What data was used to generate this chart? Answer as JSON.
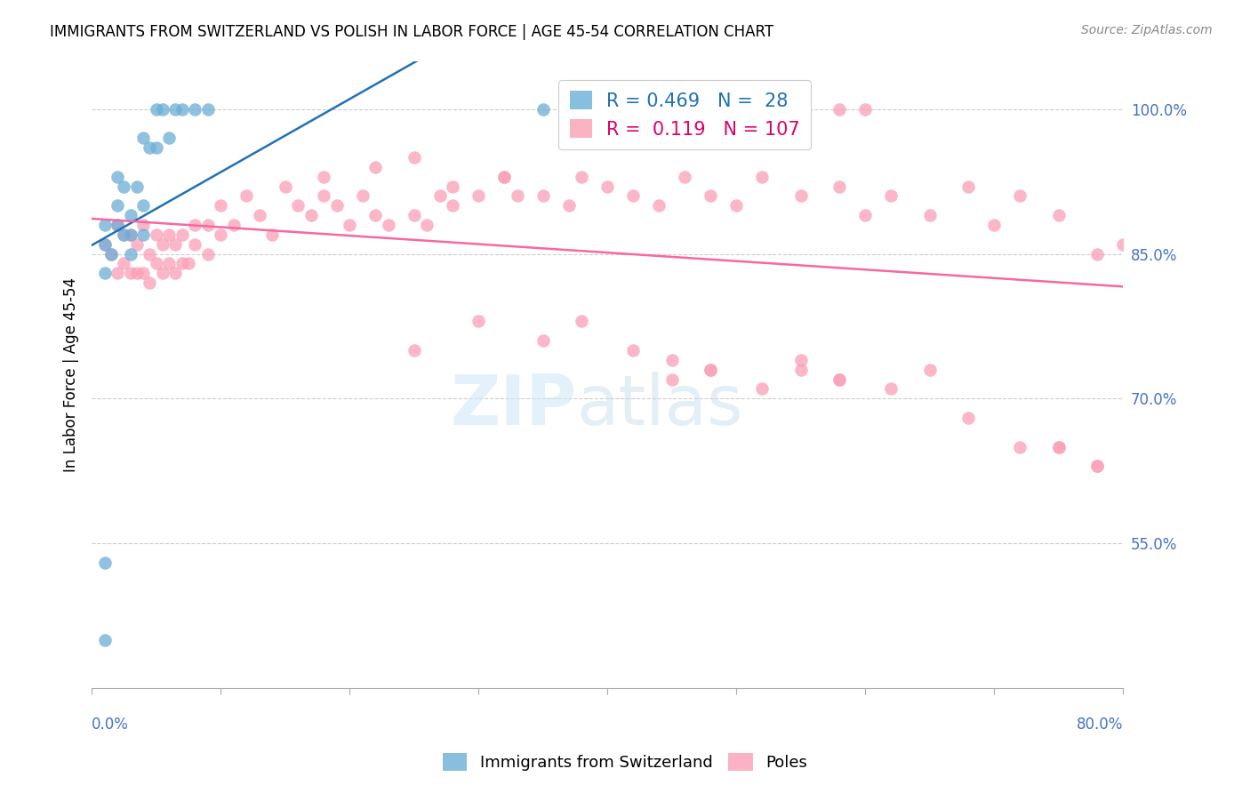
{
  "title": "IMMIGRANTS FROM SWITZERLAND VS POLISH IN LABOR FORCE | AGE 45-54 CORRELATION CHART",
  "source": "Source: ZipAtlas.com",
  "ylabel": "In Labor Force | Age 45-54",
  "ytick_values": [
    1.0,
    0.85,
    0.7,
    0.55
  ],
  "xmin": 0.0,
  "xmax": 0.8,
  "ymin": 0.4,
  "ymax": 1.05,
  "legend_swiss_R": "0.469",
  "legend_swiss_N": "28",
  "legend_poles_R": "0.119",
  "legend_poles_N": "107",
  "swiss_color": "#6baed6",
  "poles_color": "#fa9fb5",
  "swiss_line_color": "#2171b5",
  "poles_line_color": "#f768a1",
  "swiss_scatter_x": [
    0.01,
    0.01,
    0.01,
    0.015,
    0.02,
    0.02,
    0.02,
    0.025,
    0.025,
    0.03,
    0.03,
    0.03,
    0.035,
    0.04,
    0.04,
    0.04,
    0.045,
    0.05,
    0.05,
    0.055,
    0.06,
    0.065,
    0.07,
    0.08,
    0.09,
    0.35,
    0.01,
    0.01
  ],
  "swiss_scatter_y": [
    0.83,
    0.86,
    0.88,
    0.85,
    0.88,
    0.9,
    0.93,
    0.87,
    0.92,
    0.85,
    0.87,
    0.89,
    0.92,
    0.87,
    0.9,
    0.97,
    0.96,
    0.96,
    1.0,
    1.0,
    0.97,
    1.0,
    1.0,
    1.0,
    1.0,
    1.0,
    0.53,
    0.45
  ],
  "poles_scatter_x": [
    0.01,
    0.015,
    0.02,
    0.02,
    0.025,
    0.025,
    0.03,
    0.03,
    0.035,
    0.035,
    0.04,
    0.04,
    0.045,
    0.045,
    0.05,
    0.05,
    0.055,
    0.055,
    0.06,
    0.06,
    0.065,
    0.065,
    0.07,
    0.07,
    0.075,
    0.08,
    0.08,
    0.09,
    0.09,
    0.1,
    0.1,
    0.11,
    0.12,
    0.13,
    0.14,
    0.15,
    0.16,
    0.17,
    0.18,
    0.19,
    0.2,
    0.21,
    0.22,
    0.23,
    0.25,
    0.26,
    0.27,
    0.28,
    0.3,
    0.32,
    0.33,
    0.35,
    0.37,
    0.38,
    0.4,
    0.42,
    0.44,
    0.46,
    0.48,
    0.5,
    0.52,
    0.55,
    0.58,
    0.6,
    0.62,
    0.65,
    0.68,
    0.7,
    0.72,
    0.75,
    0.5,
    0.52,
    0.55,
    0.58,
    0.6,
    0.38,
    0.42,
    0.45,
    0.18,
    0.22,
    0.25,
    0.28,
    0.32,
    0.45,
    0.48,
    0.75,
    0.78,
    0.55,
    0.58,
    0.62,
    0.65,
    0.68,
    0.72,
    0.75,
    0.78,
    0.8,
    0.78,
    0.25,
    0.3,
    0.35,
    0.38,
    0.42,
    0.45,
    0.48,
    0.52,
    0.55,
    0.58
  ],
  "poles_scatter_y": [
    0.86,
    0.85,
    0.83,
    0.88,
    0.84,
    0.87,
    0.83,
    0.87,
    0.83,
    0.86,
    0.83,
    0.88,
    0.82,
    0.85,
    0.84,
    0.87,
    0.83,
    0.86,
    0.84,
    0.87,
    0.83,
    0.86,
    0.84,
    0.87,
    0.84,
    0.86,
    0.88,
    0.85,
    0.88,
    0.87,
    0.9,
    0.88,
    0.91,
    0.89,
    0.87,
    0.92,
    0.9,
    0.89,
    0.91,
    0.9,
    0.88,
    0.91,
    0.89,
    0.88,
    0.89,
    0.88,
    0.91,
    0.9,
    0.91,
    0.93,
    0.91,
    0.91,
    0.9,
    0.93,
    0.92,
    0.91,
    0.9,
    0.93,
    0.91,
    0.9,
    0.93,
    0.91,
    0.92,
    0.89,
    0.91,
    0.89,
    0.92,
    0.88,
    0.91,
    0.89,
    1.0,
    1.0,
    1.0,
    1.0,
    1.0,
    1.0,
    1.0,
    1.0,
    0.93,
    0.94,
    0.95,
    0.92,
    0.93,
    0.72,
    0.73,
    0.65,
    0.63,
    0.74,
    0.72,
    0.71,
    0.73,
    0.68,
    0.65,
    0.65,
    0.63,
    0.86,
    0.85,
    0.75,
    0.78,
    0.76,
    0.78,
    0.75,
    0.74,
    0.73,
    0.71,
    0.73,
    0.72
  ]
}
